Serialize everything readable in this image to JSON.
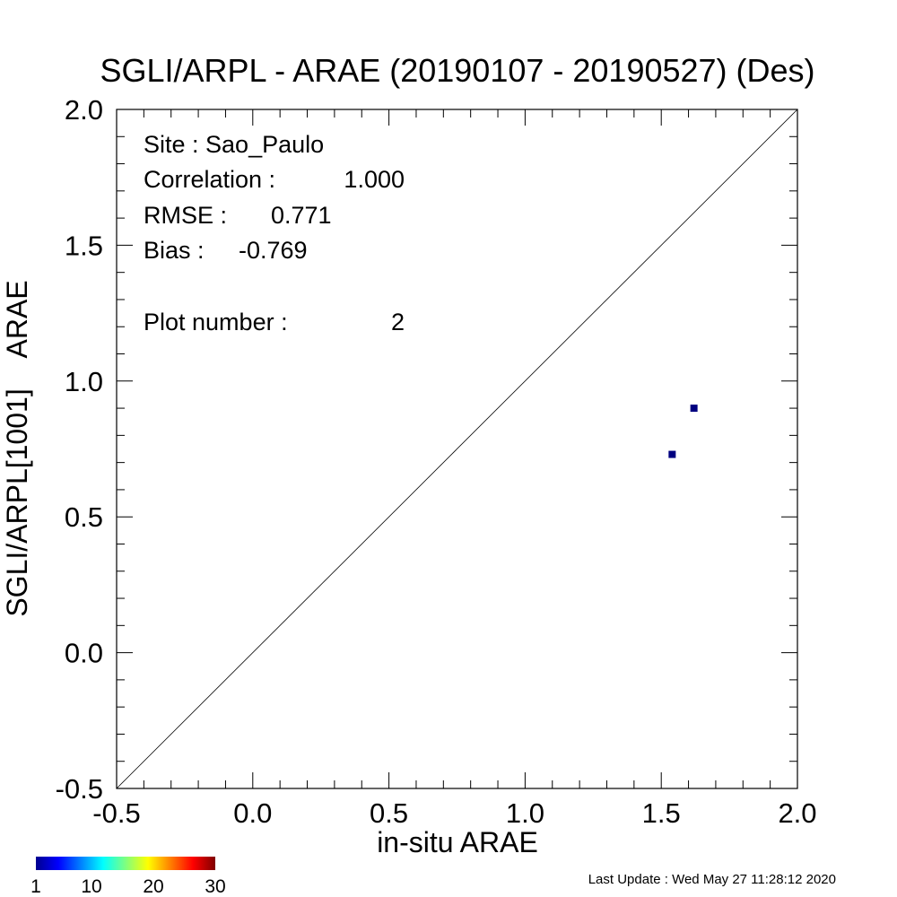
{
  "chart_data": {
    "type": "scatter",
    "title": "SGLI/ARPL - ARAE (20190107 - 20190527) (Des)",
    "xlabel": "in-situ ARAE",
    "ylabel": "SGLI/ARPL[1001]    ARAE",
    "xlim": [
      -0.5,
      2.0
    ],
    "ylim": [
      -0.5,
      2.0
    ],
    "x_ticks": [
      "-0.5",
      "0.0",
      "0.5",
      "1.0",
      "1.5",
      "2.0"
    ],
    "y_ticks": [
      "-0.5",
      "0.0",
      "0.5",
      "1.0",
      "1.5",
      "2.0"
    ],
    "reference_line": "1:1",
    "points": [
      {
        "x": 1.54,
        "y": 0.73,
        "count": 1
      },
      {
        "x": 1.62,
        "y": 0.9,
        "count": 1
      }
    ],
    "point_color": "#000080",
    "stats": [
      {
        "label": "Site : Sao_Paulo",
        "value": ""
      },
      {
        "label": "Correlation :",
        "value": "1.000"
      },
      {
        "label": "RMSE :",
        "value": "0.771"
      },
      {
        "label": "Bias :",
        "value": "-0.769"
      },
      {
        "label": "Plot number :",
        "value": "2"
      }
    ],
    "colorbar": {
      "tick_labels": [
        "1",
        "10",
        "20",
        "30"
      ],
      "range": [
        1,
        30
      ],
      "colormap": "jet"
    }
  },
  "footer": {
    "last_update": "Last Update : Wed May 27 11:28:12 2020"
  }
}
